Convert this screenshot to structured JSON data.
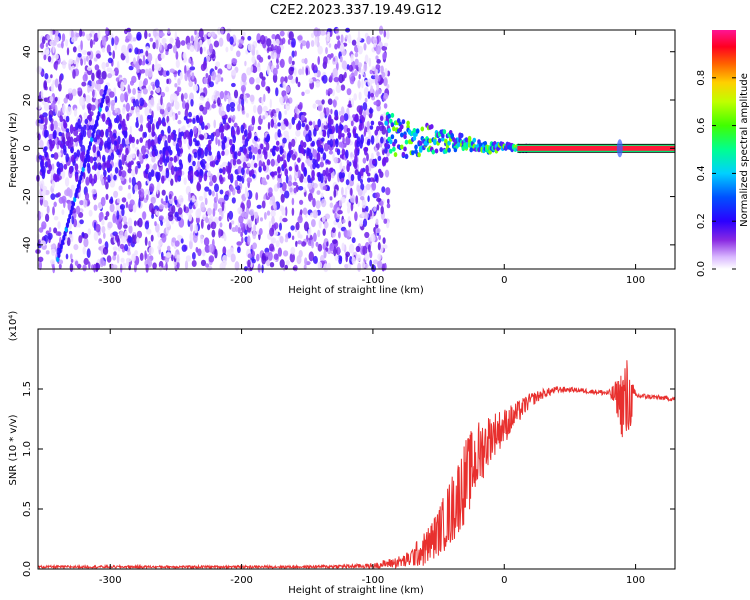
{
  "title": "C2E2.2023.337.19.49.G12",
  "colors": {
    "snr_line": "#e8302e",
    "signal_line": "#ff2a2a",
    "background_speckle": "#7b2ff7",
    "colormap": [
      "#f0e6ff",
      "#c9a0ff",
      "#8a2be2",
      "#3b00ff",
      "#0000ff",
      "#00c0ff",
      "#00ff80",
      "#80ff00",
      "#ffff00",
      "#ff8000",
      "#ff0000",
      "#ff1493"
    ]
  },
  "chart_data": [
    {
      "type": "heatmap",
      "title": "",
      "xlabel": "Height of straight line (km)",
      "ylabel": "Frequency (Hz)",
      "xlim": [
        -355,
        130
      ],
      "ylim": [
        -50,
        49
      ],
      "xticks": [
        -300,
        -200,
        -100,
        0,
        100
      ],
      "xtick_labels": [
        "-300",
        "-200",
        "-100",
        "0",
        "100"
      ],
      "yticks": [
        -40,
        -20,
        0,
        20,
        40
      ],
      "ytick_labels": [
        "-40",
        "-20",
        "0",
        "20",
        "40"
      ],
      "colorbar": {
        "label": "Normalized spectral amplitude",
        "range": [
          0,
          1
        ],
        "ticks": [
          0.0,
          0.2,
          0.4,
          0.6,
          0.8
        ],
        "tick_labels": [
          "0.0",
          "0.2",
          "0.4",
          "0.6",
          "0.8"
        ]
      },
      "signal_track": {
        "x": [
          -90,
          -80,
          -70,
          -60,
          -50,
          -40,
          -30,
          -20,
          -10,
          0,
          10,
          50,
          90,
          130
        ],
        "y": [
          7,
          5,
          3,
          4,
          3,
          3,
          2,
          1,
          0,
          1,
          0,
          0,
          0,
          0
        ],
        "spread": [
          9,
          8,
          7,
          6,
          5,
          4,
          3,
          2,
          2,
          1,
          1,
          1,
          1,
          1
        ]
      },
      "diagonal_streak": {
        "x": [
          -340,
          -303
        ],
        "y": [
          -46,
          25
        ]
      },
      "noise_region_x_end": -88
    },
    {
      "type": "line",
      "title": "",
      "xlabel": "Height of straight line (km)",
      "ylabel": "SNR (10 * v/v)",
      "y_multiplier": "(x10⁴)",
      "xlim": [
        -355,
        130
      ],
      "ylim": [
        0,
        2.0
      ],
      "xticks": [
        -300,
        -200,
        -100,
        0,
        100
      ],
      "xtick_labels": [
        "-300",
        "-200",
        "-100",
        "0",
        "100"
      ],
      "yticks": [
        0.0,
        0.5,
        1.0,
        1.5
      ],
      "ytick_labels": [
        "0.0",
        "0.5",
        "1.0",
        "1.5"
      ],
      "series": [
        {
          "x": [
            -355,
            -300,
            -250,
            -200,
            -150,
            -100,
            -75,
            -60,
            -50,
            -40,
            -30,
            -20,
            -10,
            0,
            10,
            20,
            30,
            40,
            50,
            60,
            70,
            80,
            88,
            92,
            95,
            100,
            110,
            120,
            130
          ],
          "values": [
            0.02,
            0.02,
            0.02,
            0.02,
            0.02,
            0.03,
            0.08,
            0.2,
            0.35,
            0.55,
            0.8,
            1.0,
            1.15,
            1.22,
            1.32,
            1.42,
            1.47,
            1.5,
            1.5,
            1.49,
            1.48,
            1.47,
            1.46,
            1.45,
            1.45,
            1.45,
            1.44,
            1.43,
            1.42
          ],
          "noise_amplitude": [
            0.01,
            0.01,
            0.01,
            0.01,
            0.01,
            0.02,
            0.06,
            0.15,
            0.2,
            0.3,
            0.35,
            0.3,
            0.2,
            0.15,
            0.1,
            0.06,
            0.04,
            0.03,
            0.02,
            0.02,
            0.02,
            0.03,
            0.2,
            0.5,
            0.3,
            0.03,
            0.02,
            0.02,
            0.02
          ]
        }
      ]
    }
  ]
}
